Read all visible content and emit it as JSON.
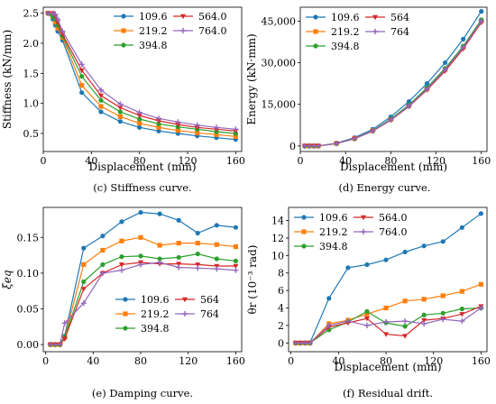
{
  "colors": {
    "109.6": "#1f77b4",
    "219.2": "#ff7f0e",
    "394.8": "#2ca02c",
    "564": "#d62728",
    "764": "#9467bd"
  },
  "chart_data": [
    {
      "id": "stiffness",
      "type": "line",
      "caption": "(c) Stiffness curve.",
      "xlabel": "Displacement (mm)",
      "ylabel": "Stiffness (kN/mm)",
      "xlim": [
        0,
        165
      ],
      "ylim": [
        0.2,
        2.6
      ],
      "xticks": [
        0,
        40,
        80,
        120,
        160
      ],
      "yticks": [
        0.5,
        1.0,
        1.5,
        2.0,
        2.5
      ],
      "ytick_labels": [
        "0.5",
        "1.0",
        "1.5",
        "2.0",
        "2.5"
      ],
      "legend_cols": 2,
      "legend": "top-right",
      "x": [
        4,
        8,
        10,
        12,
        16,
        32,
        48,
        64,
        80,
        96,
        112,
        128,
        144,
        160
      ],
      "series": [
        {
          "name": "109.6",
          "color": "#1f77b4",
          "marker": "circle",
          "values": [
            2.5,
            2.4,
            2.3,
            2.2,
            2.05,
            1.18,
            0.86,
            0.7,
            0.6,
            0.54,
            0.5,
            0.46,
            0.43,
            0.4
          ]
        },
        {
          "name": "219.2",
          "color": "#ff7f0e",
          "marker": "square",
          "values": [
            2.5,
            2.45,
            2.35,
            2.25,
            2.1,
            1.3,
            0.95,
            0.78,
            0.67,
            0.6,
            0.55,
            0.51,
            0.48,
            0.45
          ]
        },
        {
          "name": "394.8",
          "color": "#2ca02c",
          "marker": "circle",
          "values": [
            2.5,
            2.45,
            2.4,
            2.3,
            2.12,
            1.45,
            1.05,
            0.86,
            0.74,
            0.66,
            0.61,
            0.57,
            0.53,
            0.5
          ]
        },
        {
          "name": "564.0",
          "color": "#d62728",
          "marker": "triangle-down",
          "values": [
            2.5,
            2.5,
            2.45,
            2.35,
            2.15,
            1.55,
            1.13,
            0.93,
            0.8,
            0.71,
            0.65,
            0.6,
            0.57,
            0.54
          ]
        },
        {
          "name": "764.0",
          "color": "#9467bd",
          "marker": "plus",
          "values": [
            2.5,
            2.5,
            2.48,
            2.4,
            2.2,
            1.65,
            1.22,
            0.99,
            0.85,
            0.75,
            0.69,
            0.64,
            0.6,
            0.57
          ]
        }
      ]
    },
    {
      "id": "energy",
      "type": "line",
      "caption": "(d) Energy curve.",
      "xlabel": "Displacement (mm)",
      "ylabel": "Energy (kN·mm)",
      "xlim": [
        0,
        165
      ],
      "ylim": [
        -2000,
        50000
      ],
      "xticks": [
        0,
        40,
        80,
        120,
        160
      ],
      "yticks": [
        0,
        15000,
        30000,
        45000
      ],
      "ytick_labels": [
        "0",
        "15,000",
        "30,000",
        "45,000"
      ],
      "legend_cols": 2,
      "legend": "top-left",
      "x": [
        4,
        8,
        12,
        16,
        32,
        48,
        64,
        80,
        96,
        112,
        128,
        144,
        160
      ],
      "series": [
        {
          "name": "109.6",
          "color": "#1f77b4",
          "marker": "circle",
          "values": [
            0,
            0,
            0,
            0,
            1000,
            3000,
            6000,
            10500,
            16000,
            22500,
            30000,
            38500,
            48500
          ]
        },
        {
          "name": "219.2",
          "color": "#ff7f0e",
          "marker": "square",
          "values": [
            0,
            0,
            0,
            0,
            900,
            2700,
            5500,
            9500,
            14500,
            20500,
            27500,
            35500,
            45000
          ]
        },
        {
          "name": "394.8",
          "color": "#2ca02c",
          "marker": "circle",
          "values": [
            0,
            0,
            0,
            0,
            900,
            2700,
            5500,
            9700,
            14800,
            21000,
            28000,
            36000,
            45500
          ]
        },
        {
          "name": "564",
          "color": "#d62728",
          "marker": "triangle-down",
          "values": [
            0,
            0,
            0,
            0,
            850,
            2600,
            5300,
            9300,
            14200,
            20200,
            27000,
            35000,
            44500
          ]
        },
        {
          "name": "764",
          "color": "#9467bd",
          "marker": "plus",
          "values": [
            0,
            0,
            0,
            0,
            850,
            2600,
            5400,
            9400,
            14400,
            20500,
            27500,
            35500,
            45000
          ]
        }
      ]
    },
    {
      "id": "damping",
      "type": "line",
      "caption": "(e) Damping curve.",
      "xlabel": "",
      "ylabel": "ξeq",
      "xlim": [
        -2,
        165
      ],
      "ylim": [
        -0.01,
        0.192
      ],
      "xticks": [
        0,
        40,
        80,
        120,
        160
      ],
      "yticks": [
        0.0,
        0.05,
        0.1,
        0.15
      ],
      "ytick_labels": [
        "0.00",
        "0.05",
        "0.10",
        "0.15"
      ],
      "legend_cols": 2,
      "legend": "bottom-right",
      "x": [
        4,
        8,
        12,
        16,
        32,
        48,
        64,
        80,
        96,
        112,
        128,
        144,
        160
      ],
      "series": [
        {
          "name": "109.6",
          "color": "#1f77b4",
          "marker": "circle",
          "values": [
            0,
            0,
            0,
            0.012,
            0.135,
            0.152,
            0.172,
            0.185,
            0.183,
            0.174,
            0.156,
            0.167,
            0.164
          ]
        },
        {
          "name": "219.2",
          "color": "#ff7f0e",
          "marker": "square",
          "values": [
            0,
            0,
            0,
            0.01,
            0.112,
            0.132,
            0.145,
            0.15,
            0.139,
            0.142,
            0.142,
            0.14,
            0.137
          ]
        },
        {
          "name": "394.8",
          "color": "#2ca02c",
          "marker": "circle",
          "values": [
            0,
            0,
            0,
            0.01,
            0.088,
            0.112,
            0.123,
            0.124,
            0.12,
            0.122,
            0.127,
            0.12,
            0.117
          ]
        },
        {
          "name": "564",
          "color": "#d62728",
          "marker": "triangle-down",
          "values": [
            0,
            0,
            0,
            0.008,
            0.078,
            0.1,
            0.112,
            0.115,
            0.113,
            0.113,
            0.112,
            0.11,
            0.11
          ]
        },
        {
          "name": "764",
          "color": "#9467bd",
          "marker": "plus",
          "values": [
            0,
            0,
            0,
            0.03,
            0.058,
            0.1,
            0.104,
            0.112,
            0.115,
            0.108,
            0.107,
            0.106,
            0.104
          ]
        }
      ]
    },
    {
      "id": "drift",
      "type": "line",
      "caption": "(f) Residual drift.",
      "xlabel": "Displacement (mm)",
      "ylabel": "θr (10⁻³ rad)",
      "xlim": [
        -2,
        165
      ],
      "ylim": [
        -1,
        15.5
      ],
      "xticks": [
        0,
        40,
        80,
        120,
        160
      ],
      "yticks": [
        0,
        2,
        4,
        6,
        8,
        10,
        12,
        14
      ],
      "ytick_labels": [
        "0",
        "2",
        "4",
        "6",
        "8",
        "10",
        "12",
        "14"
      ],
      "legend_cols": 2,
      "legend": "top-left",
      "x": [
        4,
        8,
        12,
        16,
        32,
        48,
        64,
        80,
        96,
        112,
        128,
        144,
        160
      ],
      "series": [
        {
          "name": "109.6",
          "color": "#1f77b4",
          "marker": "circle",
          "values": [
            0,
            0,
            0,
            0,
            5.1,
            8.6,
            8.95,
            9.5,
            10.4,
            11.1,
            11.6,
            13.2,
            14.8
          ]
        },
        {
          "name": "219.2",
          "color": "#ff7f0e",
          "marker": "square",
          "values": [
            0,
            0,
            0,
            0,
            2.2,
            2.6,
            3.3,
            4.0,
            4.8,
            5.0,
            5.4,
            5.9,
            6.7
          ]
        },
        {
          "name": "394.8",
          "color": "#2ca02c",
          "marker": "circle",
          "values": [
            0,
            0,
            0,
            0,
            1.5,
            2.4,
            3.6,
            2.3,
            1.9,
            3.2,
            3.4,
            3.9,
            4.0
          ]
        },
        {
          "name": "564.0",
          "color": "#d62728",
          "marker": "triangle-down",
          "values": [
            0,
            0,
            0,
            0,
            1.8,
            2.3,
            2.8,
            1.0,
            0.8,
            2.6,
            2.8,
            3.3,
            4.2
          ]
        },
        {
          "name": "764.0",
          "color": "#9467bd",
          "marker": "plus",
          "values": [
            0,
            0,
            0,
            0,
            2.0,
            2.5,
            2.0,
            2.4,
            2.5,
            2.2,
            2.7,
            2.5,
            4.0
          ]
        }
      ]
    }
  ]
}
